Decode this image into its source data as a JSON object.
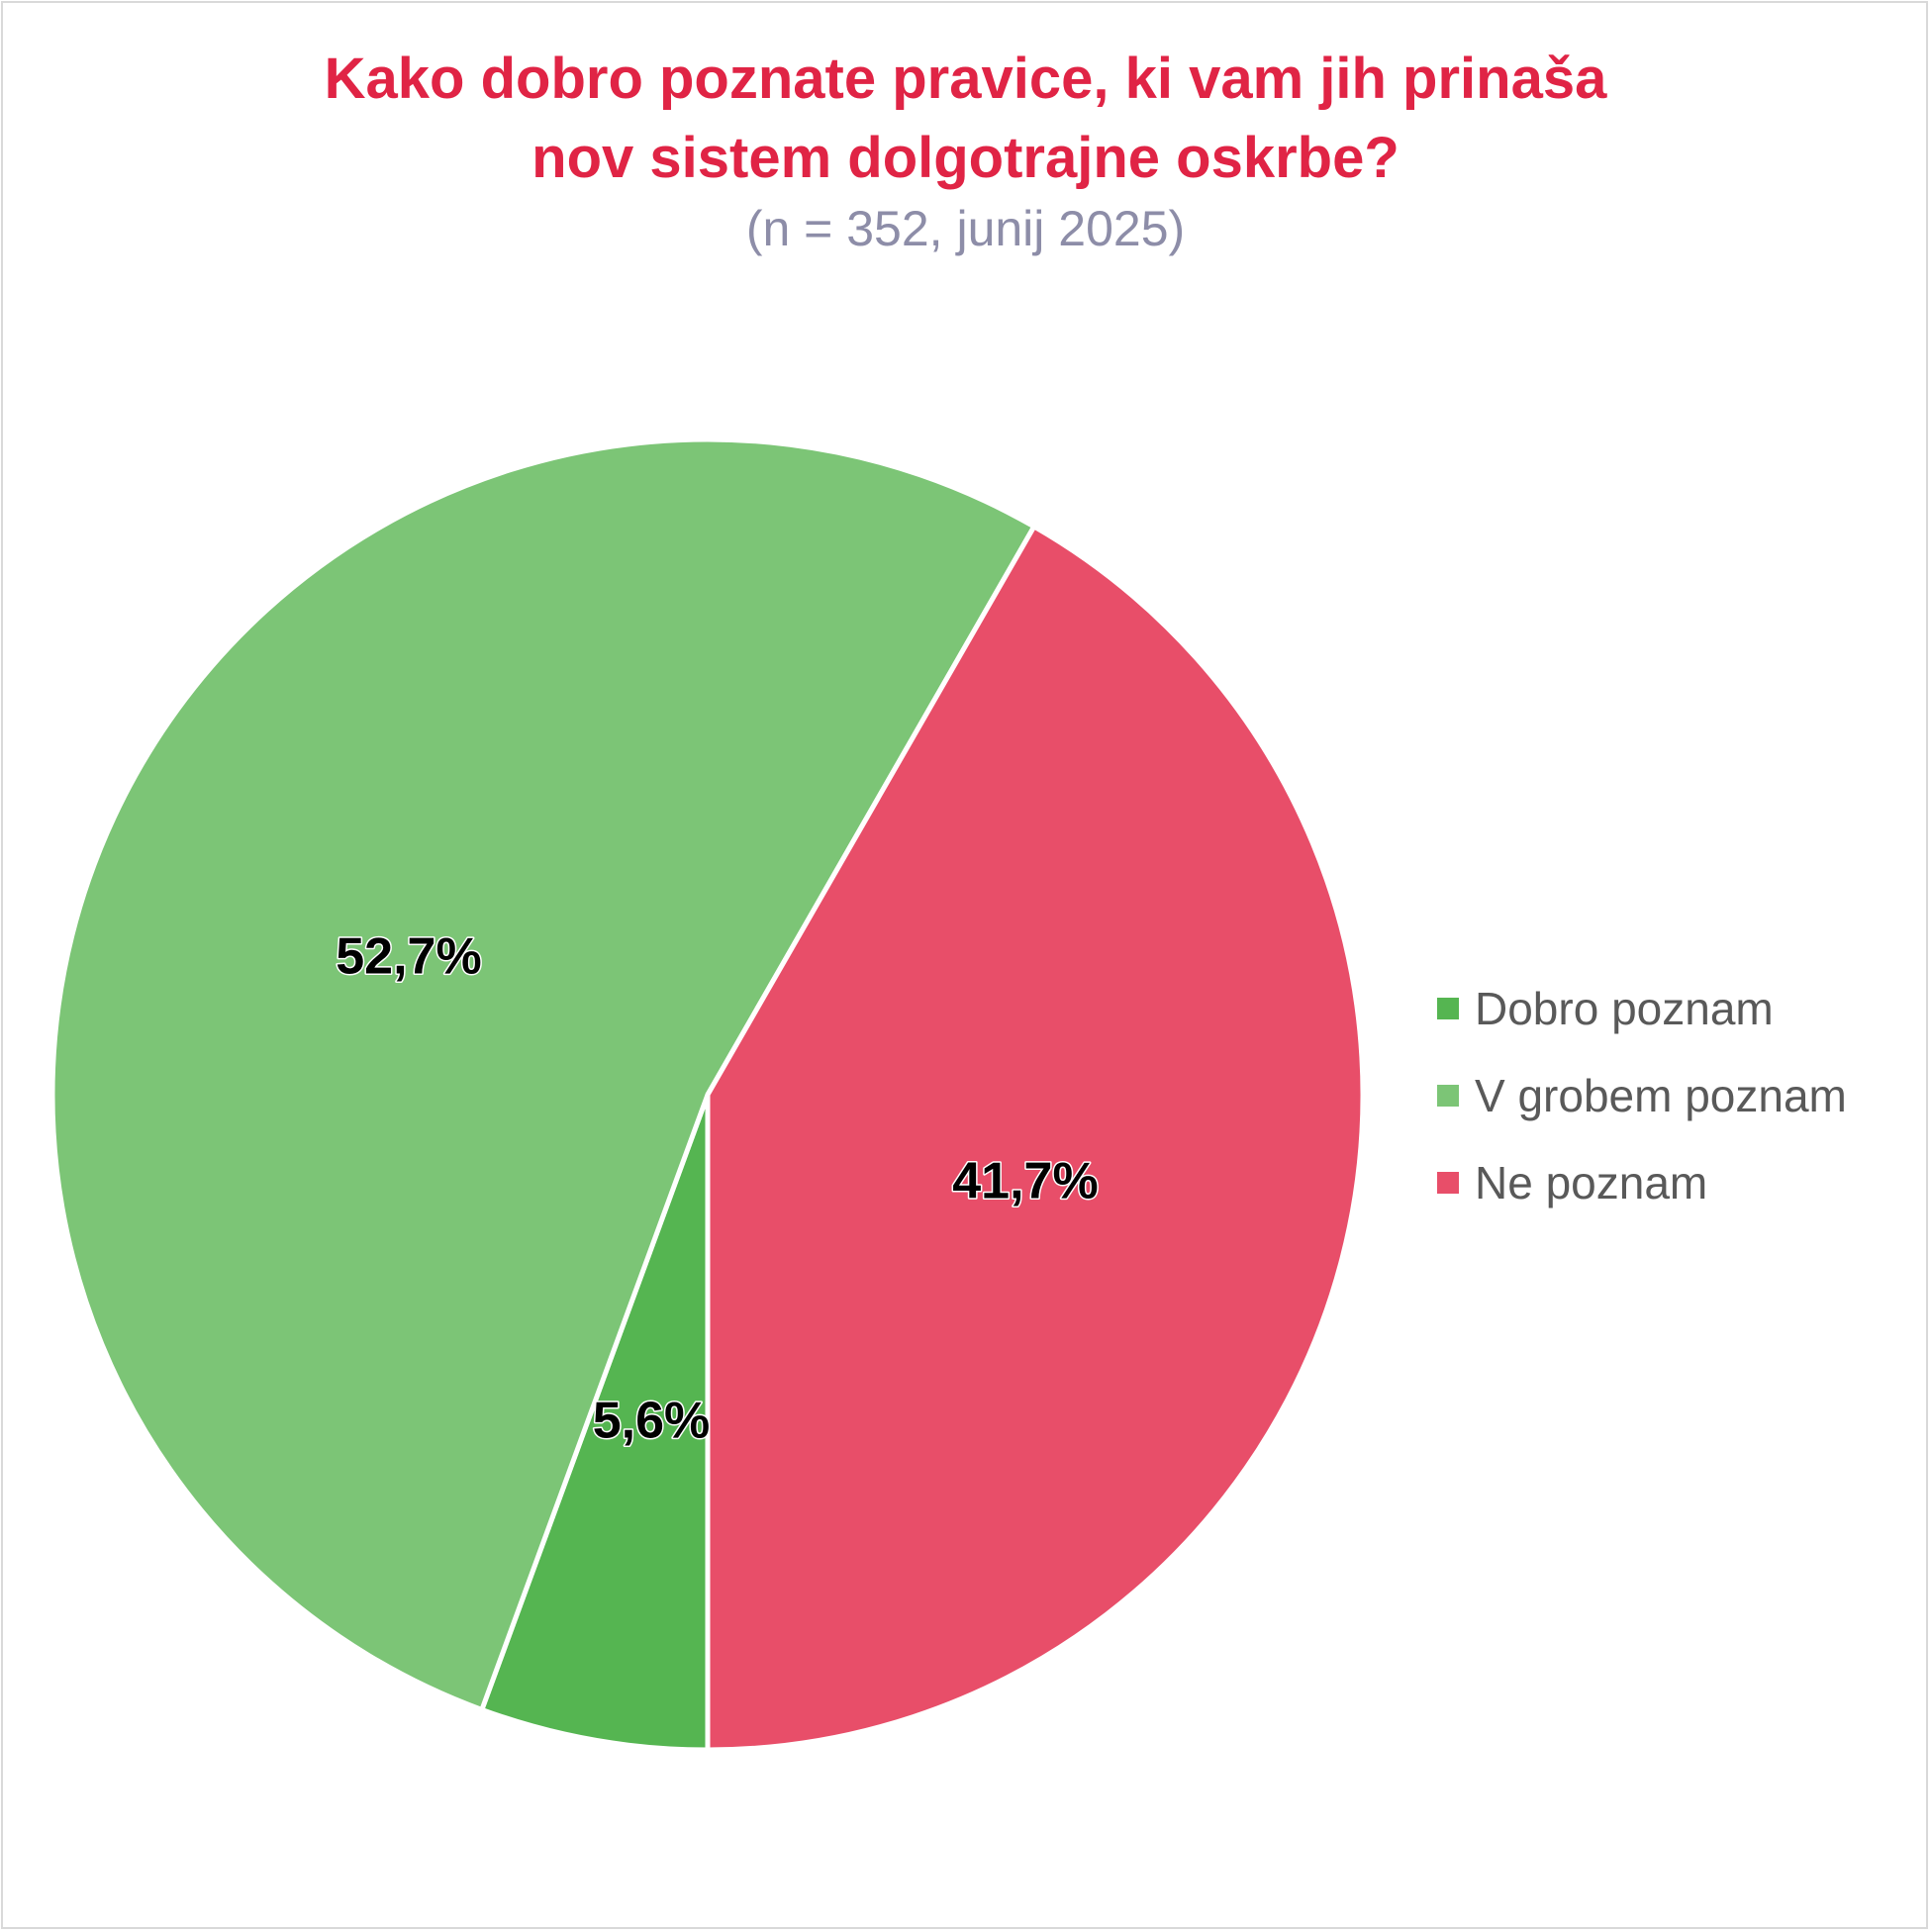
{
  "chart_data": {
    "type": "pie",
    "title_lines": [
      "Kako dobro poznate pravice, ki vam jih prinaša",
      "nov sistem dolgotrajne oskrbe?"
    ],
    "subtitle": "(n = 352, junij 2025)",
    "legend_position": "right",
    "slices": [
      {
        "name": "Dobro poznam",
        "value": 5.6,
        "label": "5,6%",
        "color": "#55b551"
      },
      {
        "name": "V grobem poznam",
        "value": 52.7,
        "label": "52,7%",
        "color": "#7cc576"
      },
      {
        "name": "Ne poznam",
        "value": 41.7,
        "label": "41,7%",
        "color": "#e84e69"
      }
    ],
    "title_color": "#e02445",
    "subtitle_color": "#8d8da8",
    "legend_text_color": "#595959"
  }
}
